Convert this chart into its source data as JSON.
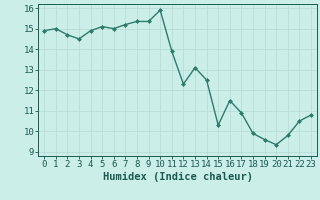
{
  "x": [
    0,
    1,
    2,
    3,
    4,
    5,
    6,
    7,
    8,
    9,
    10,
    11,
    12,
    13,
    14,
    15,
    16,
    17,
    18,
    19,
    20,
    21,
    22,
    23
  ],
  "y": [
    14.9,
    15.0,
    14.7,
    14.5,
    14.9,
    15.1,
    15.0,
    15.2,
    15.35,
    15.35,
    15.9,
    13.9,
    12.3,
    13.1,
    12.5,
    10.3,
    11.5,
    10.9,
    9.9,
    9.6,
    9.35,
    9.8,
    10.5,
    10.8
  ],
  "xlabel": "Humidex (Indice chaleur)",
  "ylim": [
    9,
    16
  ],
  "xlim": [
    -0.5,
    23.5
  ],
  "yticks": [
    9,
    10,
    11,
    12,
    13,
    14,
    15,
    16
  ],
  "xticks": [
    0,
    1,
    2,
    3,
    4,
    5,
    6,
    7,
    8,
    9,
    10,
    11,
    12,
    13,
    14,
    15,
    16,
    17,
    18,
    19,
    20,
    21,
    22,
    23
  ],
  "line_color": "#2d7b6e",
  "marker_color": "#2d7b6e",
  "bg_color": "#cceee8",
  "grid_color": "#b8ddd7",
  "text_color": "#1a5a50",
  "xlabel_fontsize": 7.5,
  "tick_fontsize": 6.5,
  "linewidth": 1.0,
  "markersize": 2.0
}
